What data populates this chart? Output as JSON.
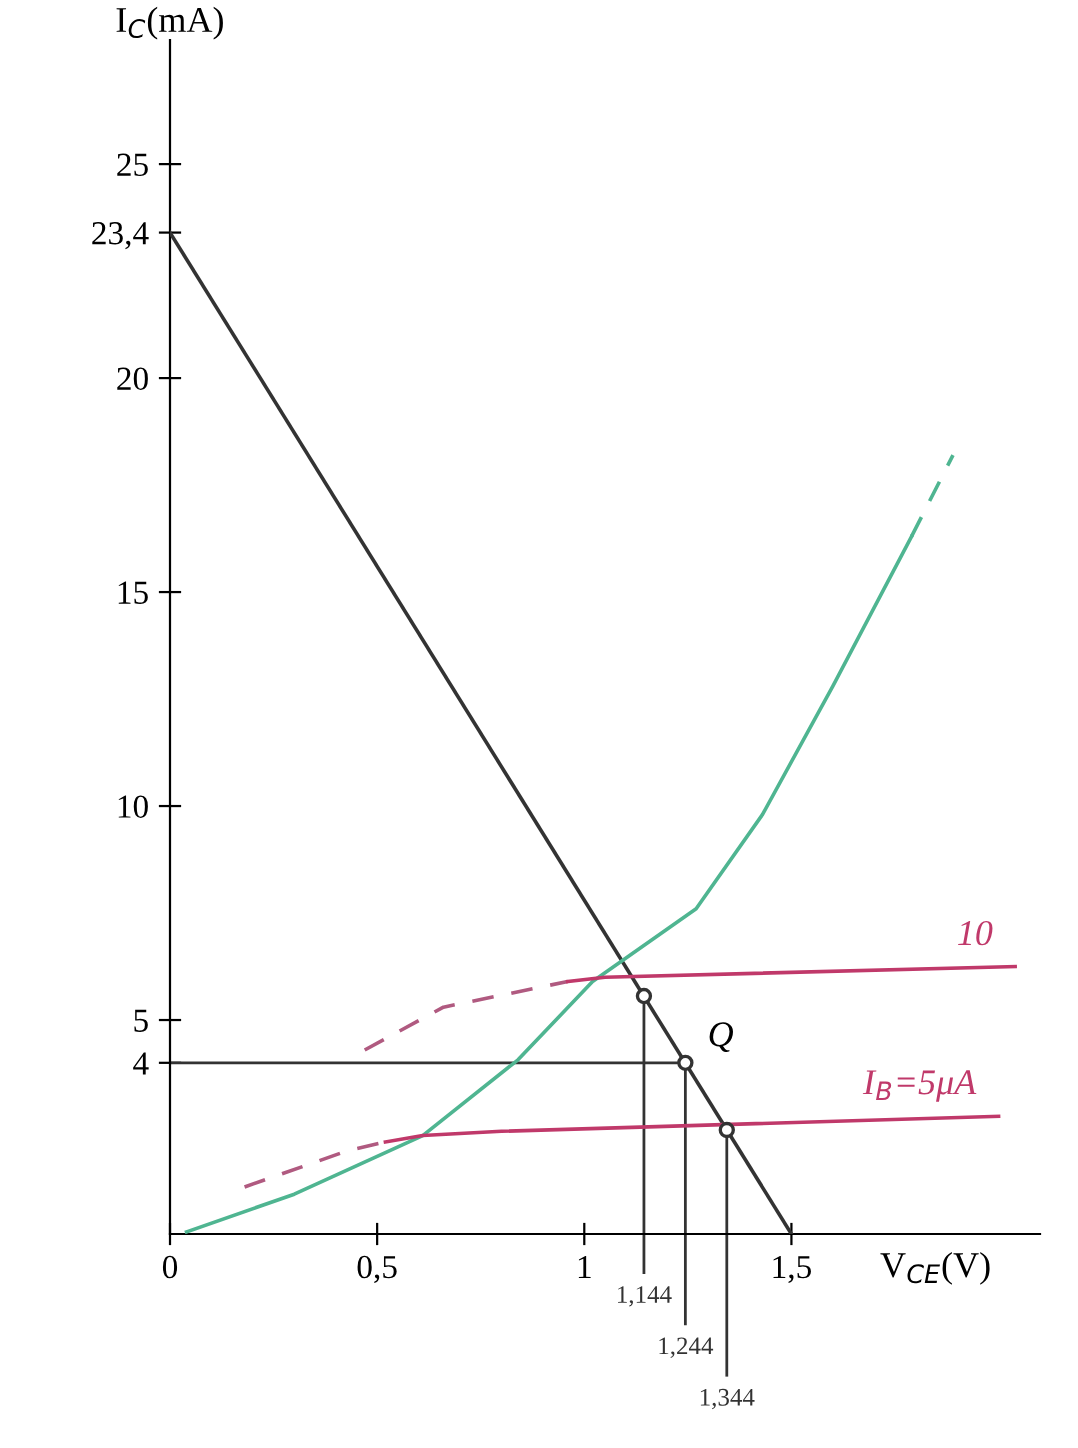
{
  "chart_data": {
    "type": "line",
    "xlabel": "V$_{CE}$(V)",
    "ylabel": "I$_{C}$(mA)",
    "xlim": [
      0,
      2.1
    ],
    "ylim": [
      0,
      27.9
    ],
    "xticks": [
      0,
      {
        "value": 0.5,
        "label": "0,5"
      },
      1,
      {
        "value": 1.5,
        "label": "1,5"
      }
    ],
    "yticks": [
      {
        "value": 4,
        "label": "4"
      },
      5,
      10,
      15,
      20,
      {
        "value": 23.4,
        "label": "23,4"
      },
      25
    ],
    "grid": false,
    "legend": false,
    "series": [
      {
        "x": [
          0,
          1.5
        ],
        "values": [
          23.4,
          0
        ],
        "color": "#333333",
        "line_style": "solid"
      },
      {
        "x": [
          0.04,
          0.3,
          0.61,
          0.84,
          1.02,
          1.27,
          1.43,
          1.6,
          1.79
        ],
        "values": [
          0.05,
          0.93,
          2.3,
          4.07,
          5.9,
          7.6,
          9.8,
          12.8,
          16.3
        ],
        "color": "#4fb591",
        "line_style": "solid"
      },
      {
        "x": [
          1.79,
          1.89
        ],
        "values": [
          16.3,
          18.2
        ],
        "color": "#4fb591",
        "line_style": "dashed"
      },
      {
        "x": [
          0.47,
          0.66,
          0.96
        ],
        "values": [
          4.3,
          5.3,
          5.9
        ],
        "color": "#b05a80",
        "line_style": "dashed"
      },
      {
        "name": "10",
        "x": [
          0.96,
          1.05,
          2.04
        ],
        "values": [
          5.9,
          6.0,
          6.25
        ],
        "color": "#c0396a",
        "line_style": "solid"
      },
      {
        "x": [
          0.18,
          0.43,
          0.52
        ],
        "values": [
          1.1,
          1.95,
          2.15
        ],
        "color": "#b05a80",
        "line_style": "dashed"
      },
      {
        "name": "I$_{B}$=5μA",
        "x": [
          0.52,
          0.61,
          0.8,
          2.0
        ],
        "values": [
          2.15,
          2.3,
          2.4,
          2.75
        ],
        "color": "#c0396a",
        "line_style": "solid"
      },
      {
        "type": "scatter",
        "marker": "circle",
        "x": [
          1.144,
          1.244,
          1.344
        ],
        "values": [
          5.56,
          4,
          2.43
        ],
        "color": "#333333"
      }
    ],
    "ref_lines": [
      {
        "axis": "y",
        "value": 4,
        "color": "#333333"
      },
      {
        "axis": "x",
        "value": 1.144,
        "label": "1,144",
        "color": "#333333"
      },
      {
        "axis": "x",
        "value": 1.244,
        "label": "1,244",
        "color": "#333333"
      },
      {
        "axis": "x",
        "value": 1.344,
        "label": "1,344",
        "color": "#333333"
      }
    ],
    "annotations": [
      {
        "text": "Q",
        "x": 1.244,
        "y": 4
      }
    ]
  }
}
